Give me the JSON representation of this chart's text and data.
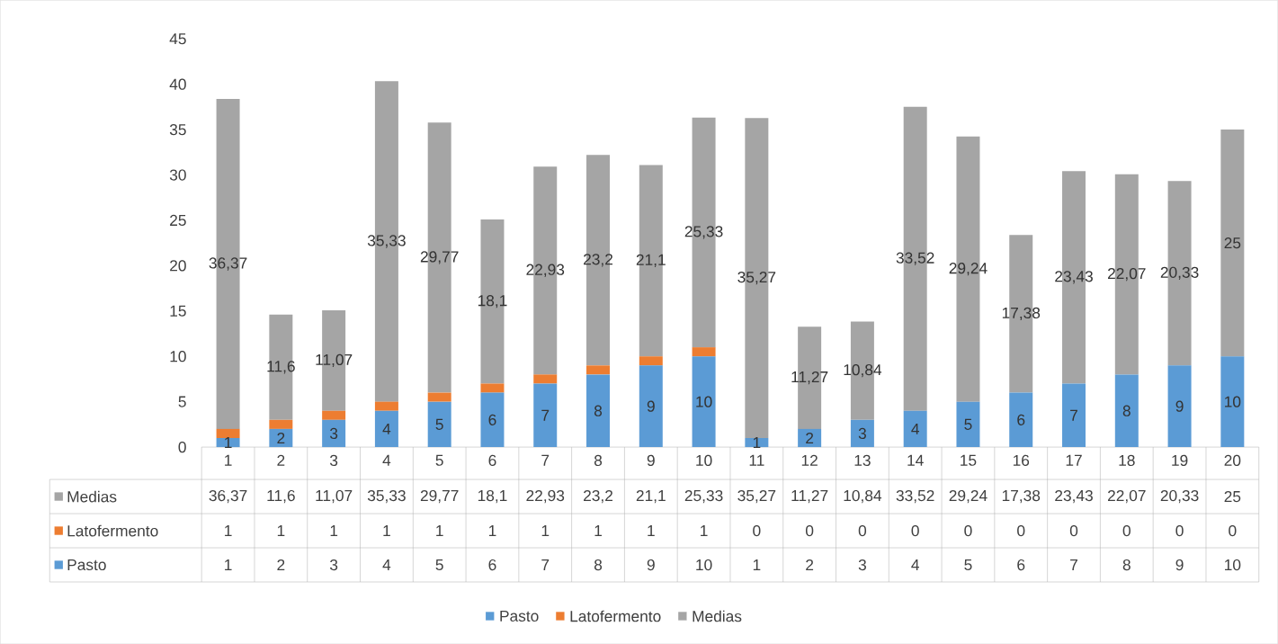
{
  "chart_data": {
    "type": "bar",
    "stacked": true,
    "categories": [
      "1",
      "2",
      "3",
      "4",
      "5",
      "6",
      "7",
      "8",
      "9",
      "10",
      "11",
      "12",
      "13",
      "14",
      "15",
      "16",
      "17",
      "18",
      "19",
      "20"
    ],
    "ylim": [
      0,
      45
    ],
    "yticks": [
      0,
      5,
      10,
      15,
      20,
      25,
      30,
      35,
      40,
      45
    ],
    "legend": "bottom",
    "data_labels": true,
    "series": [
      {
        "name": "Pasto",
        "color": "#5b9bd5",
        "values": [
          1,
          2,
          3,
          4,
          5,
          6,
          7,
          8,
          9,
          10,
          1,
          2,
          3,
          4,
          5,
          6,
          7,
          8,
          9,
          10
        ],
        "value_labels": [
          "1",
          "2",
          "3",
          "4",
          "5",
          "6",
          "7",
          "8",
          "9",
          "10",
          "1",
          "2",
          "3",
          "4",
          "5",
          "6",
          "7",
          "8",
          "9",
          "10"
        ]
      },
      {
        "name": "Latofermento",
        "color": "#ed7d31",
        "values": [
          1,
          1,
          1,
          1,
          1,
          1,
          1,
          1,
          1,
          1,
          0,
          0,
          0,
          0,
          0,
          0,
          0,
          0,
          0,
          0
        ]
      },
      {
        "name": "Medias",
        "color": "#a5a5a5",
        "values": [
          36.37,
          11.6,
          11.07,
          35.33,
          29.77,
          18.1,
          22.93,
          23.2,
          21.1,
          25.33,
          35.27,
          11.27,
          10.84,
          33.52,
          29.24,
          17.38,
          23.43,
          22.07,
          20.33,
          25
        ],
        "value_labels": [
          "36,37",
          "11,6",
          "11,07",
          "35,33",
          "29,77",
          "18,1",
          "22,93",
          "23,2",
          "21,1",
          "25,33",
          "35,27",
          "11,27",
          "10,84",
          "33,52",
          "29,24",
          "17,38",
          "23,43",
          "22,07",
          "20,33",
          "25"
        ]
      }
    ]
  }
}
